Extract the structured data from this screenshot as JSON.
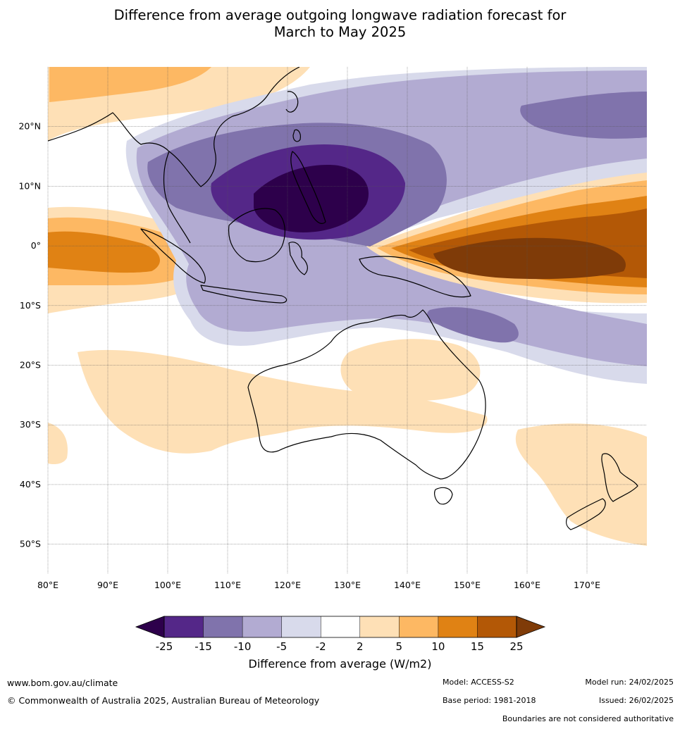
{
  "title": {
    "line1": "Difference from average outgoing longwave radiation forecast for",
    "line2": "March to May 2025"
  },
  "map": {
    "lon_range": [
      80,
      180
    ],
    "lat_range": [
      -55,
      30
    ],
    "lon_ticks": [
      {
        "value": 80,
        "label": "80°E"
      },
      {
        "value": 90,
        "label": "90°E"
      },
      {
        "value": 100,
        "label": "100°E"
      },
      {
        "value": 110,
        "label": "110°E"
      },
      {
        "value": 120,
        "label": "120°E"
      },
      {
        "value": 130,
        "label": "130°E"
      },
      {
        "value": 140,
        "label": "140°E"
      },
      {
        "value": 150,
        "label": "150°E"
      },
      {
        "value": 160,
        "label": "160°E"
      },
      {
        "value": 170,
        "label": "170°E"
      }
    ],
    "lat_ticks": [
      {
        "value": 20,
        "label": "20°N"
      },
      {
        "value": 10,
        "label": "10°N"
      },
      {
        "value": 0,
        "label": "0°"
      },
      {
        "value": -10,
        "label": "10°S"
      },
      {
        "value": -20,
        "label": "20°S"
      },
      {
        "value": -30,
        "label": "30°S"
      },
      {
        "value": -40,
        "label": "40°S"
      },
      {
        "value": -50,
        "label": "50°S"
      }
    ],
    "grid": true
  },
  "colorbar": {
    "bins": [
      {
        "color": "#2d004b"
      },
      {
        "color": "#542788"
      },
      {
        "color": "#8073ac"
      },
      {
        "color": "#b2abd2"
      },
      {
        "color": "#d8daeb"
      },
      {
        "color": "#ffffff"
      },
      {
        "color": "#fee0b6"
      },
      {
        "color": "#fdb863"
      },
      {
        "color": "#e08214"
      },
      {
        "color": "#b35806"
      },
      {
        "color": "#7f3b08"
      }
    ],
    "tick_labels": [
      "-25",
      "-15",
      "-10",
      "-5",
      "-2",
      "2",
      "5",
      "10",
      "15",
      "25"
    ],
    "label": "Difference from average (W/m2)"
  },
  "footer": {
    "website": "www.bom.gov.au/climate",
    "copyright": "© Commonwealth of Australia 2025, Australian Bureau of Meteorology",
    "model": "Model: ACCESS-S2",
    "base_period": "Base period: 1981-2018",
    "model_run": "Model run: 24/02/2025",
    "issued": "Issued: 26/02/2025",
    "disclaimer": "Boundaries are not considered authoritative"
  }
}
